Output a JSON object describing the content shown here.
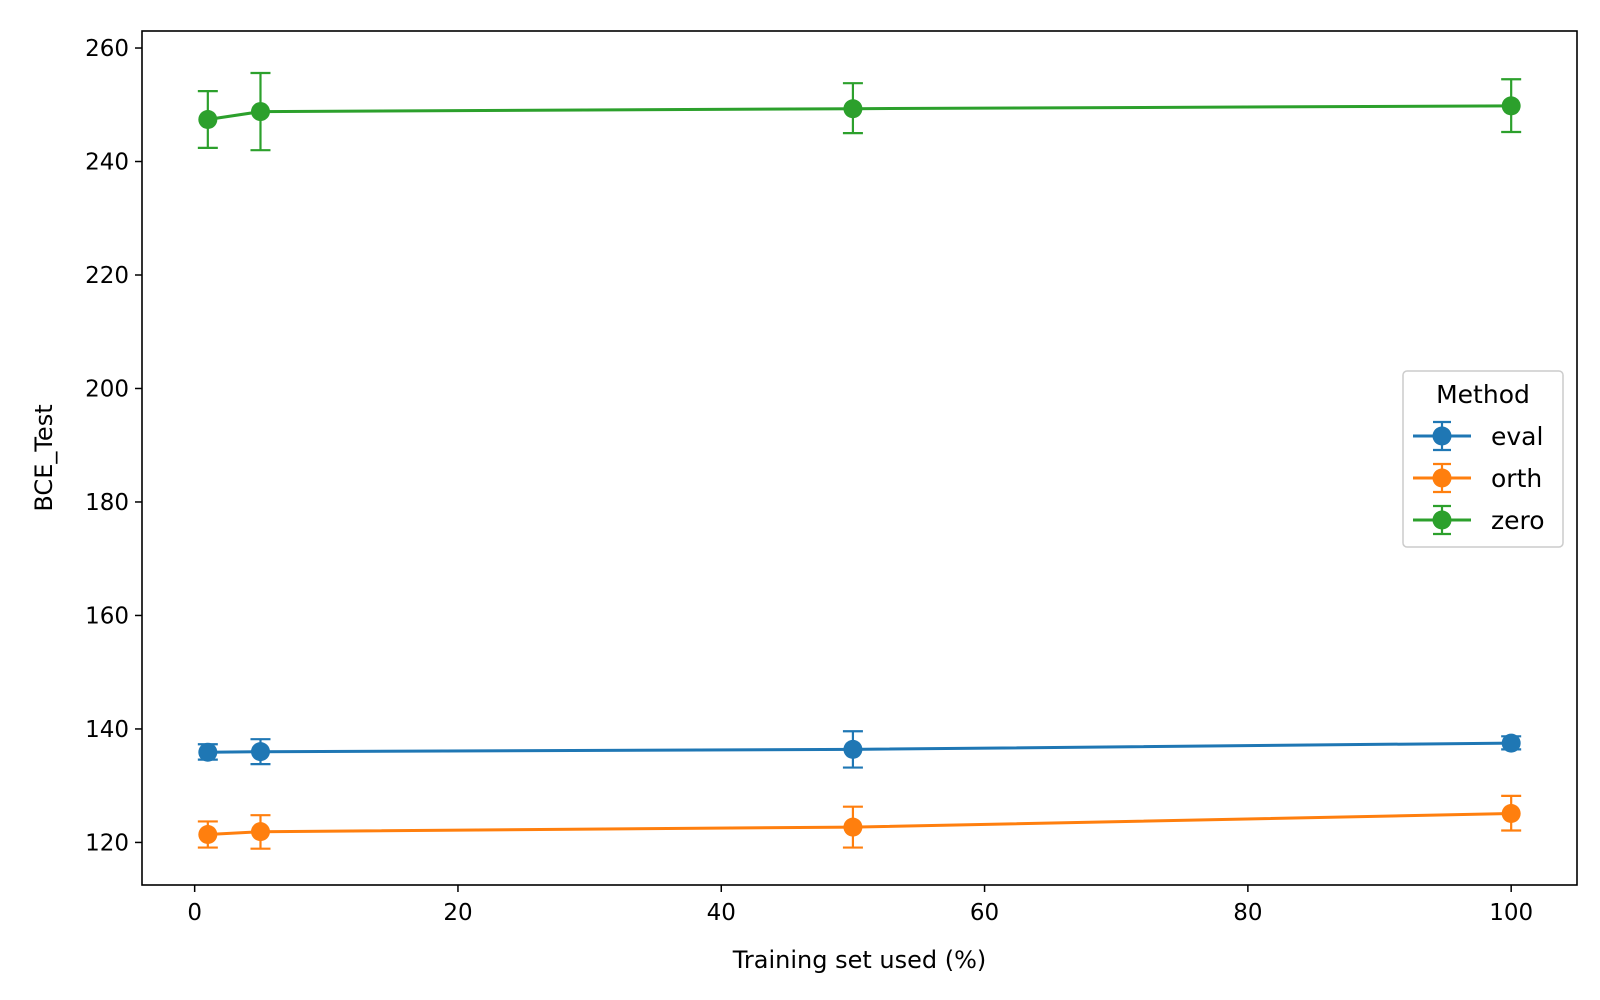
{
  "chart_data": {
    "type": "line",
    "xlabel": "Training set used (%)",
    "ylabel": "BCE_Test",
    "xlim": [
      -4,
      105
    ],
    "ylim": [
      112.5,
      263
    ],
    "x_ticks": [
      0,
      20,
      40,
      60,
      80,
      100
    ],
    "y_ticks": [
      120,
      140,
      160,
      180,
      200,
      220,
      240,
      260
    ],
    "x_tick_labels": [
      "0",
      "20",
      "40",
      "60",
      "80",
      "100"
    ],
    "y_tick_labels": [
      "120",
      "140",
      "160",
      "180",
      "200",
      "220",
      "240",
      "260"
    ],
    "grid": false,
    "legend": {
      "title": "Method",
      "placement": "right"
    },
    "x": [
      1,
      5,
      50,
      100
    ],
    "series": [
      {
        "name": "eval",
        "color": "#1f77b4",
        "values": [
          135.9,
          136.0,
          136.4,
          137.5
        ],
        "err_low": [
          134.6,
          133.8,
          133.2,
          136.4
        ],
        "err_high": [
          137.3,
          138.2,
          139.6,
          138.7
        ]
      },
      {
        "name": "orth",
        "color": "#ff7f0e",
        "values": [
          121.4,
          121.9,
          122.7,
          125.1
        ],
        "err_low": [
          119.1,
          118.9,
          119.1,
          122.1
        ],
        "err_high": [
          123.7,
          124.8,
          126.3,
          128.2
        ]
      },
      {
        "name": "zero",
        "color": "#2ca02c",
        "values": [
          247.4,
          248.8,
          249.3,
          249.8
        ],
        "err_low": [
          242.4,
          242.0,
          245.0,
          245.2
        ],
        "err_high": [
          252.4,
          255.6,
          253.8,
          254.5
        ]
      }
    ]
  }
}
